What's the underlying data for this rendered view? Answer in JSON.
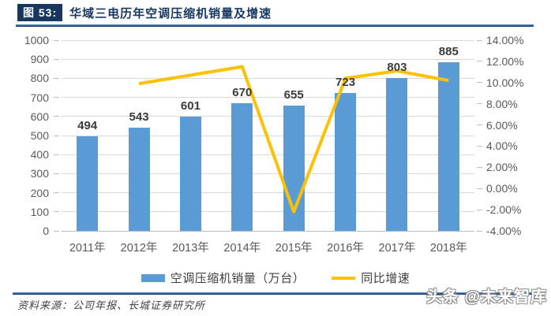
{
  "header": {
    "figure_label": "图 53:",
    "title": "华域三电历年空调压缩机销量及增速"
  },
  "chart_data": {
    "type": "combo",
    "categories": [
      "2011年",
      "2012年",
      "2013年",
      "2014年",
      "2015年",
      "2016年",
      "2017年",
      "2018年"
    ],
    "series": [
      {
        "name": "空调压缩机销量（万台）",
        "type": "bar",
        "axis": "left",
        "color": "#5B9BD5",
        "values": [
          494,
          543,
          601,
          670,
          655,
          723,
          803,
          885
        ],
        "data_labels": [
          494,
          543,
          601,
          670,
          655,
          723,
          803,
          885
        ]
      },
      {
        "name": "同比增速",
        "type": "line",
        "axis": "right",
        "color": "#FFC000",
        "unit": "percent",
        "values": [
          null,
          9.9,
          10.7,
          11.5,
          -2.2,
          10.4,
          11.1,
          10.2
        ]
      }
    ],
    "left_axis": {
      "min": 0,
      "max": 1000,
      "step": 100,
      "tick_labels": [
        "1000",
        "900",
        "800",
        "700",
        "600",
        "500",
        "400",
        "300",
        "200",
        "100",
        "0"
      ]
    },
    "right_axis": {
      "min": -4,
      "max": 14,
      "step": 2,
      "format": "0.00%",
      "tick_labels": [
        "14.00%",
        "12.00%",
        "10.00%",
        "8.00%",
        "6.00%",
        "4.00%",
        "2.00%",
        "0.00%",
        "-2.00%",
        "-4.00%"
      ]
    },
    "grid": true,
    "legend_position": "bottom"
  },
  "footer": {
    "source": "资料来源：公司年报、长城证券研究所",
    "watermark": "头条 @未来智库"
  },
  "colors": {
    "bar": "#5B9BD5",
    "line": "#FFC000",
    "title_navy": "#17375E",
    "gridline": "#D9D9D9",
    "axis_text": "#595959",
    "rule_blue": "#2a5699"
  }
}
